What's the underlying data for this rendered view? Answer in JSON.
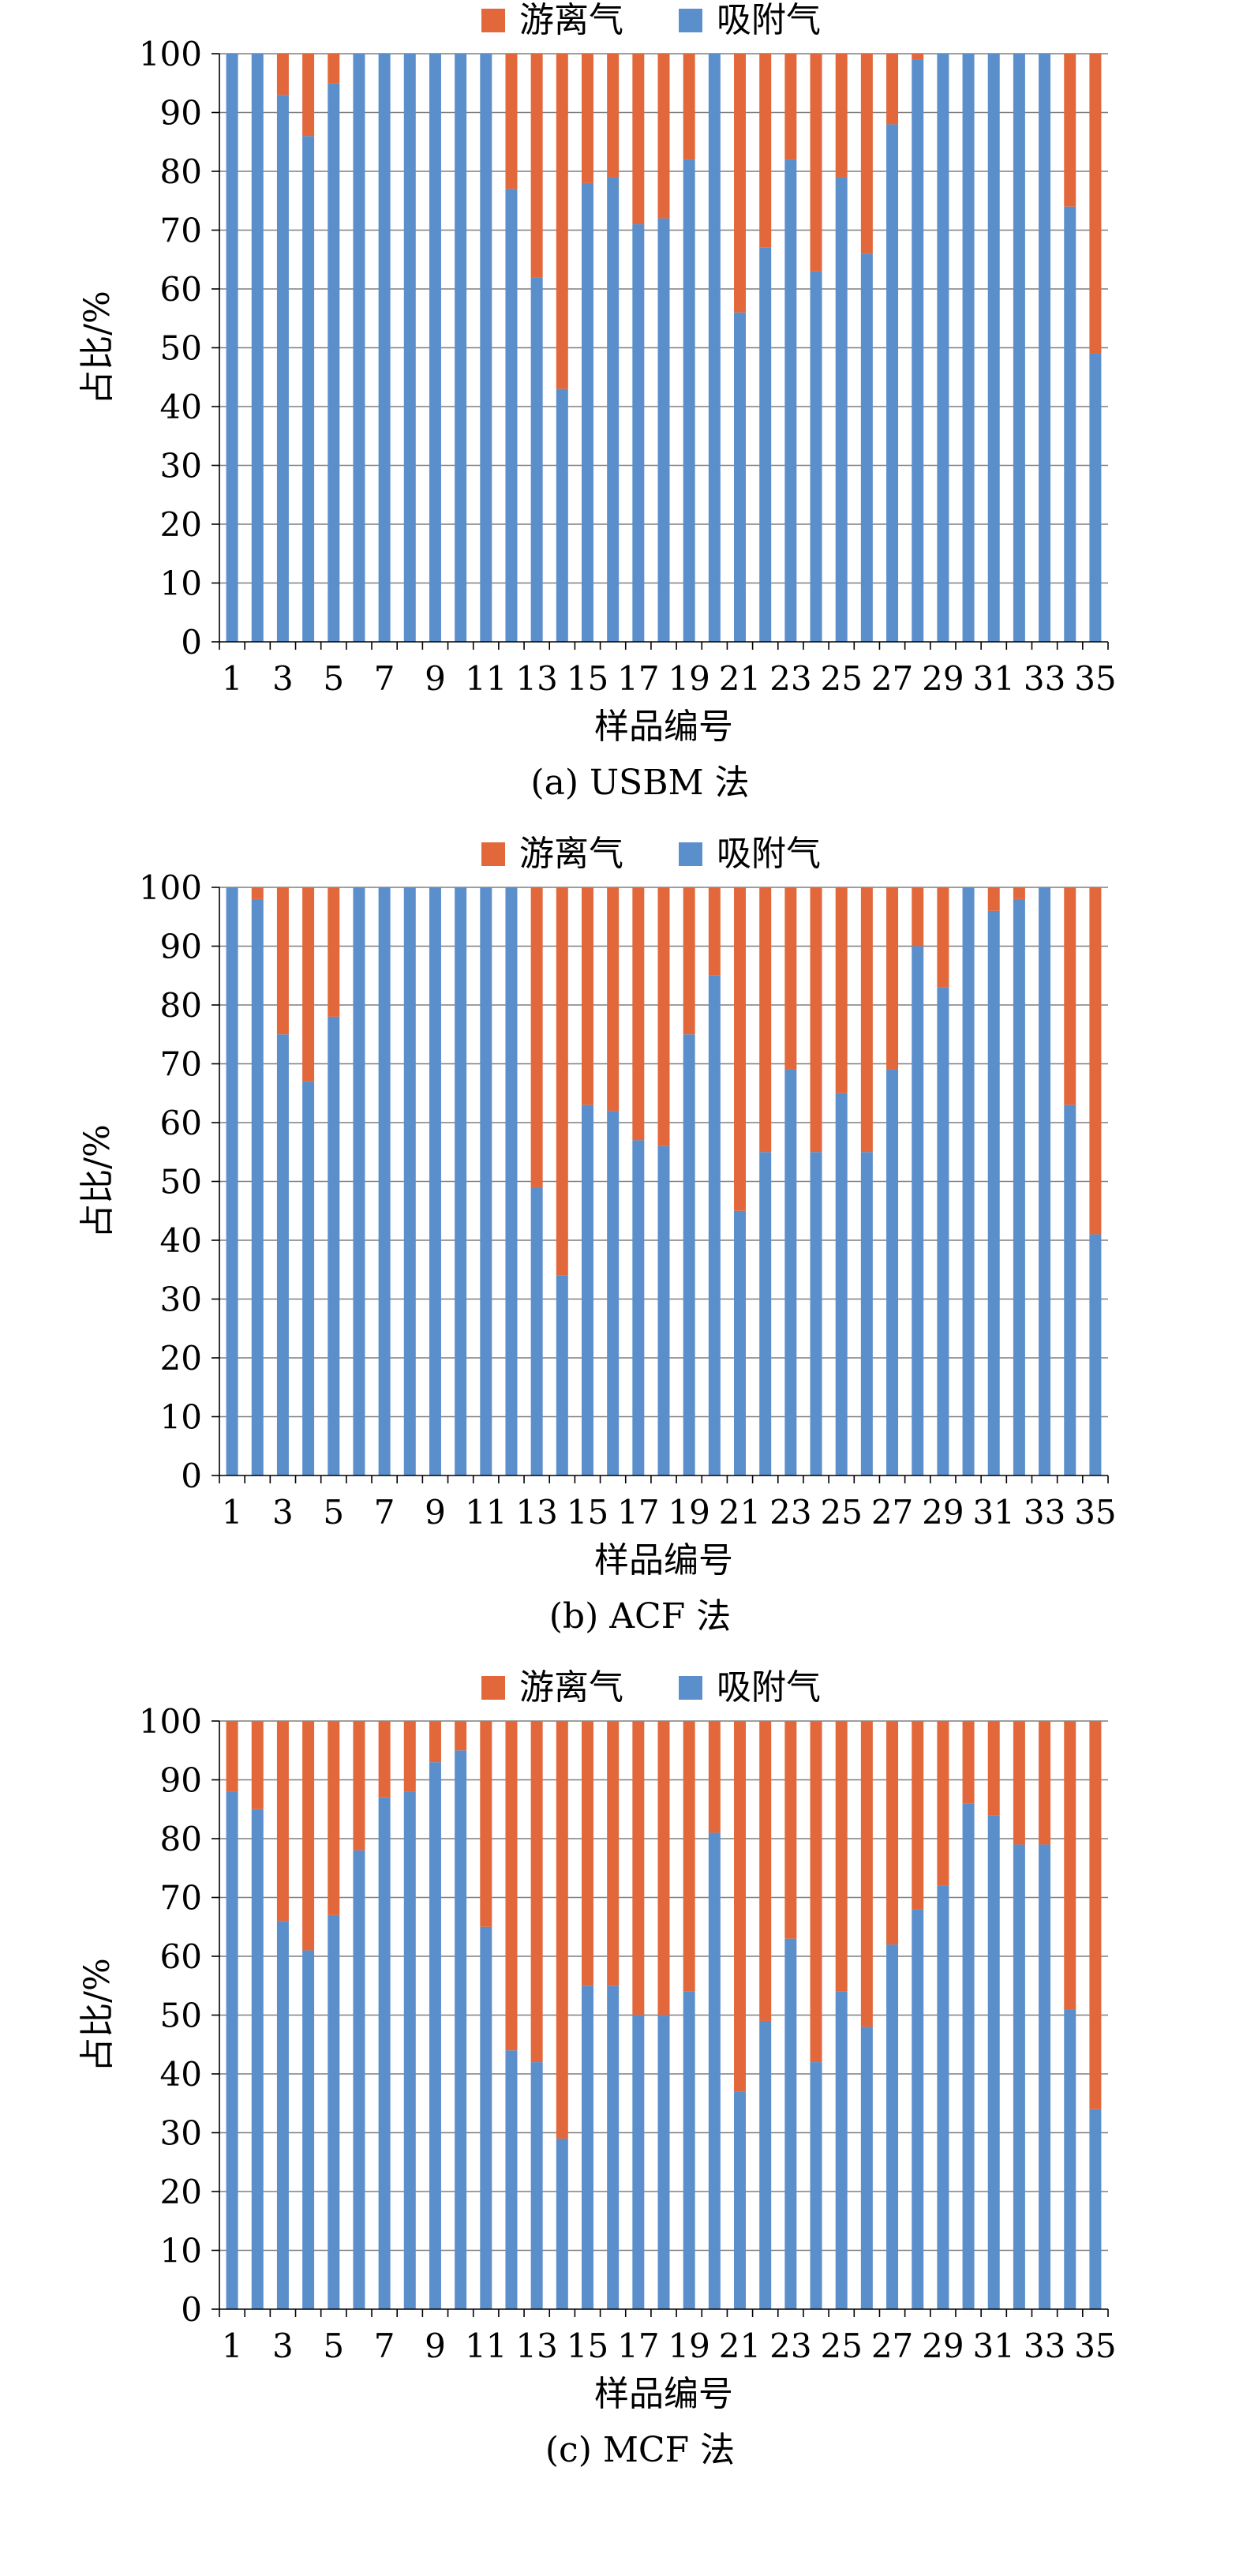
{
  "chart_data": [
    {
      "type": "bar",
      "stacked": true,
      "caption": "(a) USBM 法",
      "xlabel": "样品编号",
      "ylabel": "占比/%",
      "ylim": [
        0,
        100
      ],
      "yticks": [
        0,
        10,
        20,
        30,
        40,
        50,
        60,
        70,
        80,
        90,
        100
      ],
      "legend_position": "top-center",
      "categories": [
        "1",
        "2",
        "3",
        "4",
        "5",
        "6",
        "7",
        "8",
        "9",
        "10",
        "11",
        "12",
        "13",
        "14",
        "15",
        "16",
        "17",
        "18",
        "19",
        "20",
        "21",
        "22",
        "23",
        "24",
        "25",
        "26",
        "27",
        "28",
        "29",
        "30",
        "31",
        "32",
        "33",
        "34",
        "35"
      ],
      "xtick_labels": [
        "1",
        "3",
        "5",
        "7",
        "9",
        "11",
        "13",
        "15",
        "17",
        "19",
        "21",
        "23",
        "25",
        "27",
        "29",
        "31",
        "33",
        "35"
      ],
      "grid": true,
      "series": [
        {
          "name": "吸附气",
          "color": "#5B8FCC",
          "values": [
            100,
            100,
            93,
            86,
            95,
            100,
            100,
            100,
            100,
            100,
            100,
            77,
            62,
            43,
            78,
            79,
            71,
            72,
            82,
            100,
            56,
            67,
            82,
            63,
            79,
            66,
            88,
            99,
            100,
            100,
            100,
            100,
            100,
            74,
            49
          ]
        },
        {
          "name": "游离气",
          "color": "#E2683C",
          "values": [
            0,
            0,
            7,
            14,
            5,
            0,
            0,
            0,
            0,
            0,
            0,
            23,
            38,
            57,
            22,
            21,
            29,
            28,
            18,
            0,
            44,
            33,
            18,
            37,
            21,
            34,
            12,
            1,
            0,
            0,
            0,
            0,
            0,
            26,
            51
          ]
        }
      ]
    },
    {
      "type": "bar",
      "stacked": true,
      "caption": "(b) ACF 法",
      "xlabel": "样品编号",
      "ylabel": "占比/%",
      "ylim": [
        0,
        100
      ],
      "yticks": [
        0,
        10,
        20,
        30,
        40,
        50,
        60,
        70,
        80,
        90,
        100
      ],
      "legend_position": "top-center",
      "categories": [
        "1",
        "2",
        "3",
        "4",
        "5",
        "6",
        "7",
        "8",
        "9",
        "10",
        "11",
        "12",
        "13",
        "14",
        "15",
        "16",
        "17",
        "18",
        "19",
        "20",
        "21",
        "22",
        "23",
        "24",
        "25",
        "26",
        "27",
        "28",
        "29",
        "30",
        "31",
        "32",
        "33",
        "34",
        "35"
      ],
      "xtick_labels": [
        "1",
        "3",
        "5",
        "7",
        "9",
        "11",
        "13",
        "15",
        "17",
        "19",
        "21",
        "23",
        "25",
        "27",
        "29",
        "31",
        "33",
        "35"
      ],
      "grid": true,
      "series": [
        {
          "name": "吸附气",
          "color": "#5B8FCC",
          "values": [
            100,
            98,
            75,
            67,
            78,
            100,
            100,
            100,
            100,
            100,
            100,
            100,
            49,
            34,
            63,
            62,
            57,
            56,
            75,
            85,
            45,
            55,
            69,
            55,
            65,
            55,
            69,
            90,
            83,
            100,
            96,
            98,
            100,
            63,
            41
          ]
        },
        {
          "name": "游离气",
          "color": "#E2683C",
          "values": [
            0,
            2,
            25,
            33,
            22,
            0,
            0,
            0,
            0,
            0,
            0,
            0,
            51,
            66,
            37,
            38,
            43,
            44,
            25,
            15,
            55,
            45,
            31,
            45,
            35,
            45,
            31,
            10,
            17,
            0,
            4,
            2,
            0,
            37,
            59
          ]
        }
      ]
    },
    {
      "type": "bar",
      "stacked": true,
      "caption": "(c) MCF 法",
      "xlabel": "样品编号",
      "ylabel": "占比/%",
      "ylim": [
        0,
        100
      ],
      "yticks": [
        0,
        10,
        20,
        30,
        40,
        50,
        60,
        70,
        80,
        90,
        100
      ],
      "legend_position": "top-center",
      "categories": [
        "1",
        "2",
        "3",
        "4",
        "5",
        "6",
        "7",
        "8",
        "9",
        "10",
        "11",
        "12",
        "13",
        "14",
        "15",
        "16",
        "17",
        "18",
        "19",
        "20",
        "21",
        "22",
        "23",
        "24",
        "25",
        "26",
        "27",
        "28",
        "29",
        "30",
        "31",
        "32",
        "33",
        "34",
        "35"
      ],
      "xtick_labels": [
        "1",
        "3",
        "5",
        "7",
        "9",
        "11",
        "13",
        "15",
        "17",
        "19",
        "21",
        "23",
        "25",
        "27",
        "29",
        "31",
        "33",
        "35"
      ],
      "grid": true,
      "series": [
        {
          "name": "吸附气",
          "color": "#5B8FCC",
          "values": [
            88,
            85,
            66,
            61,
            67,
            78,
            87,
            88,
            93,
            95,
            65,
            44,
            42,
            29,
            55,
            55,
            50,
            50,
            54,
            81,
            37,
            49,
            63,
            42,
            54,
            48,
            62,
            68,
            72,
            86,
            84,
            79,
            79,
            51,
            34
          ]
        },
        {
          "name": "游离气",
          "color": "#E2683C",
          "values": [
            12,
            15,
            34,
            39,
            33,
            22,
            13,
            12,
            7,
            5,
            35,
            56,
            58,
            71,
            45,
            45,
            50,
            50,
            46,
            19,
            63,
            51,
            37,
            58,
            46,
            52,
            38,
            32,
            28,
            14,
            16,
            21,
            21,
            49,
            66
          ]
        }
      ]
    }
  ]
}
